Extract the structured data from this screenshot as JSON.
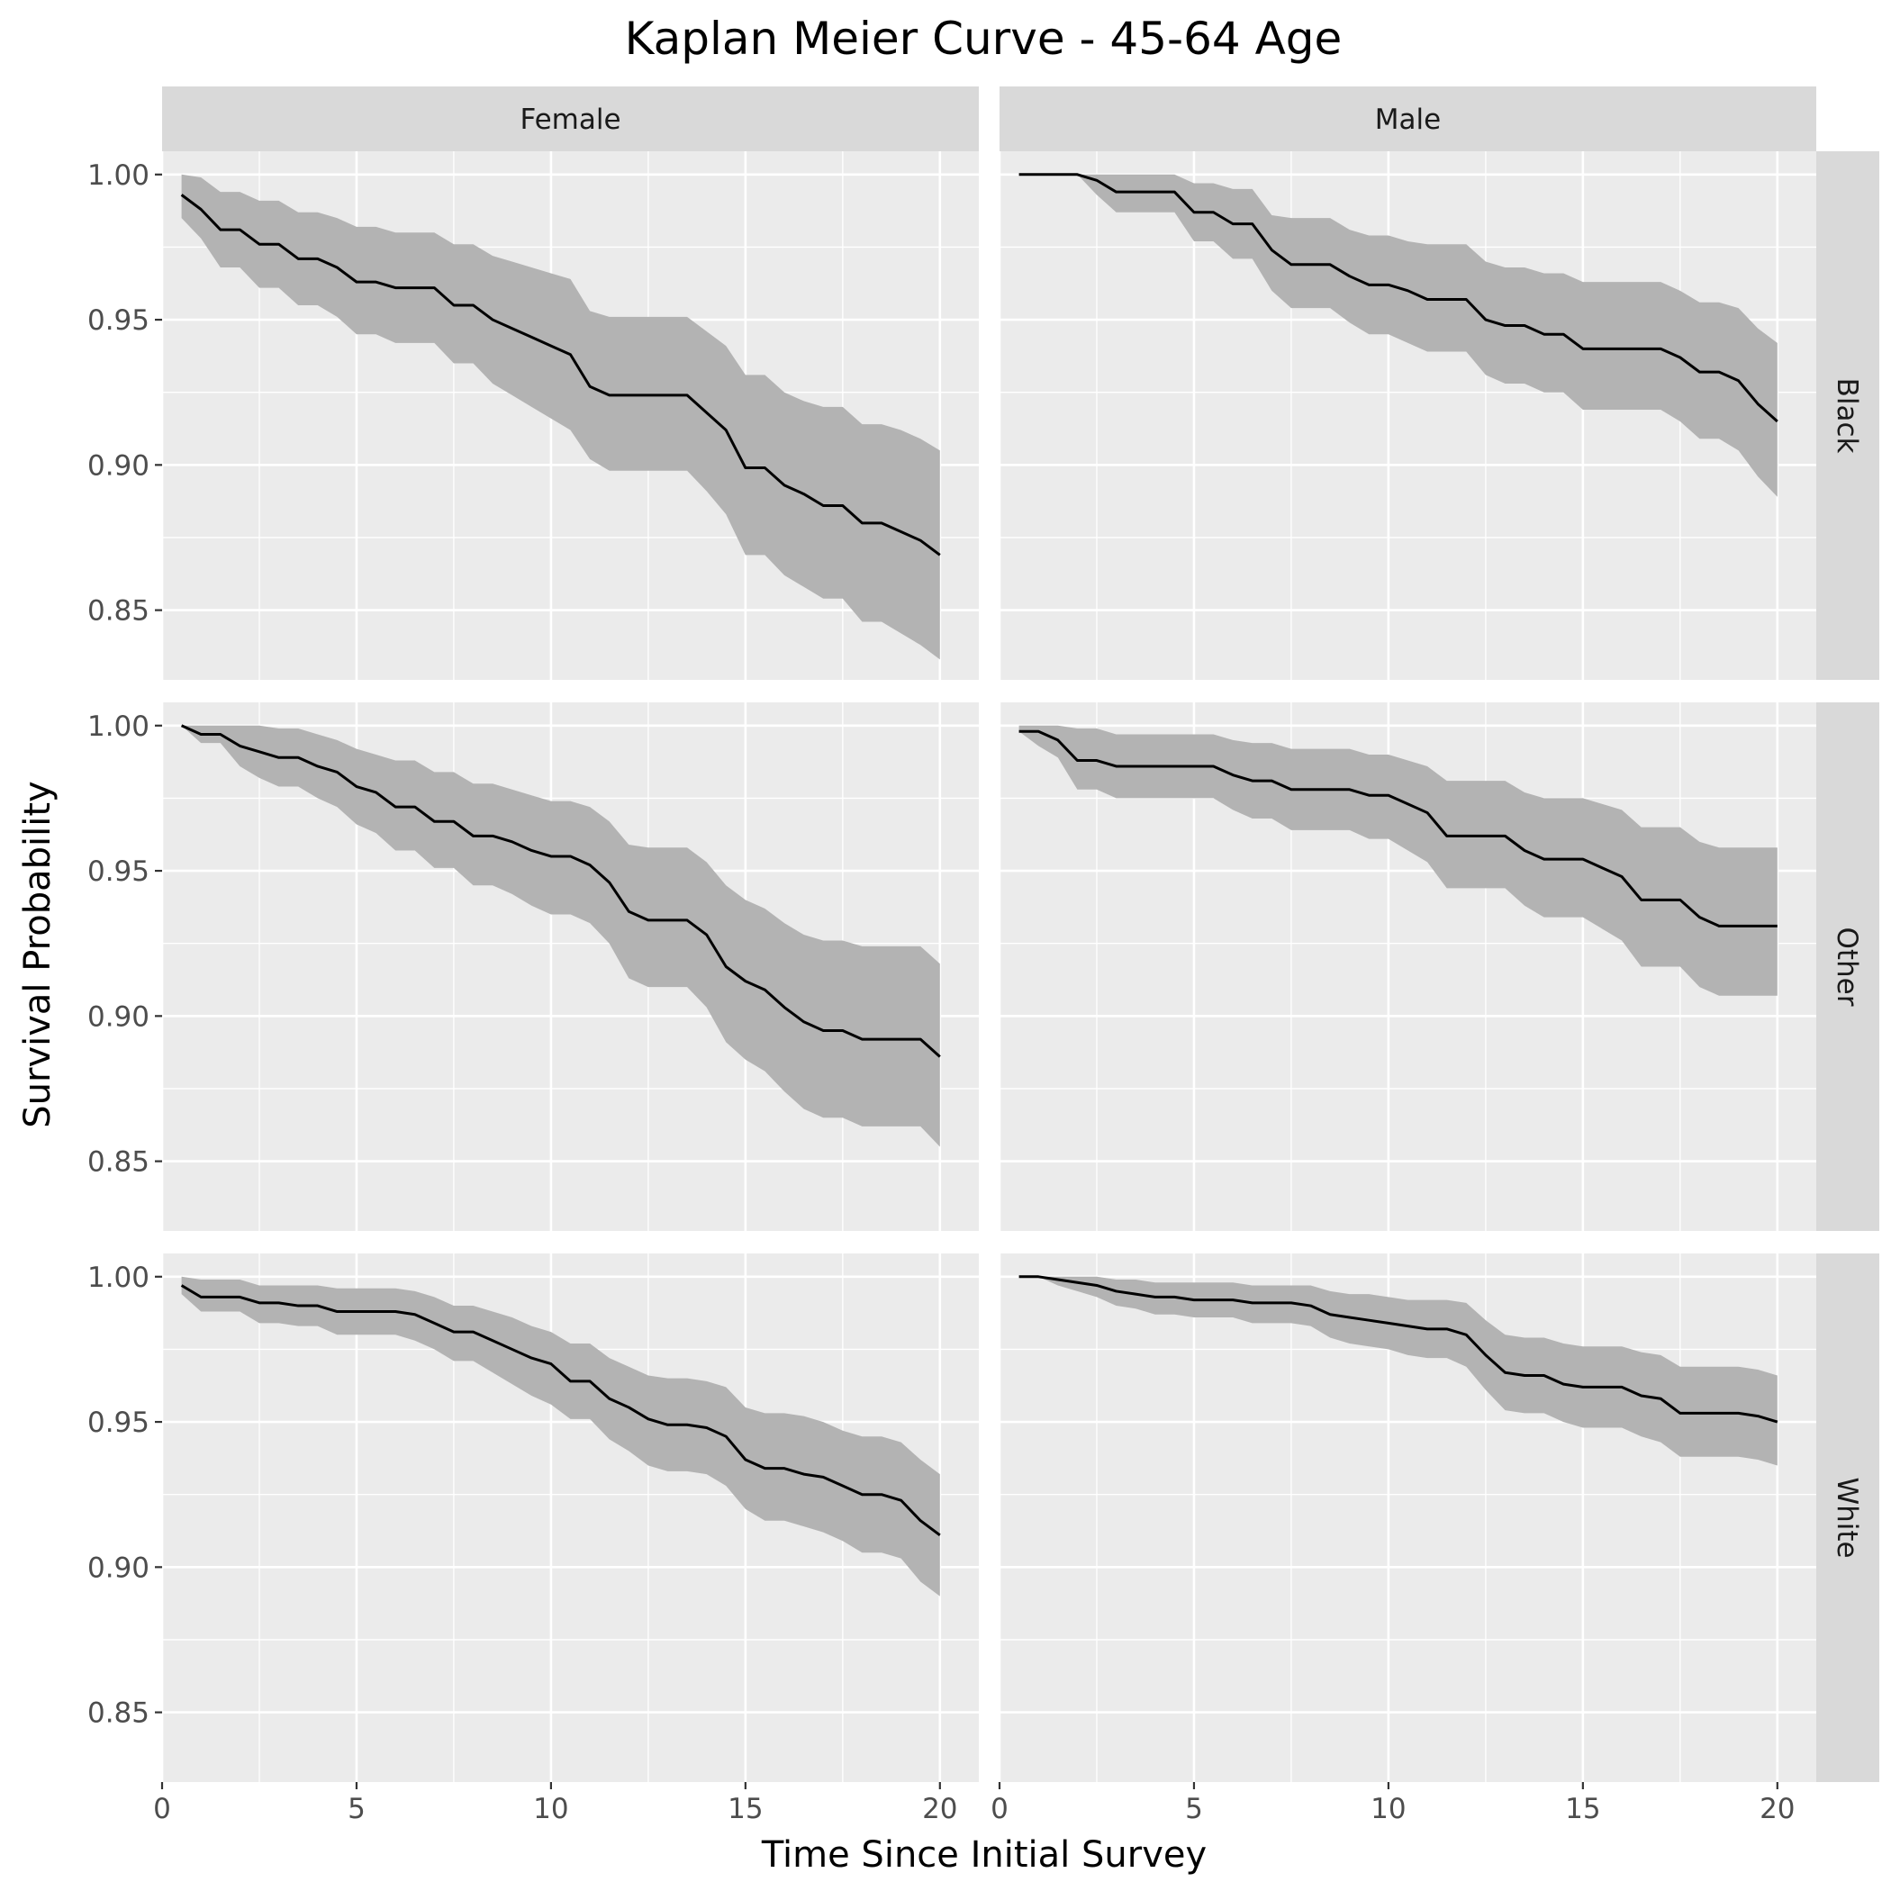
{
  "chart_data": {
    "type": "line",
    "title": "Kaplan Meier Curve - 45-64 Age",
    "xlabel": "Time Since Initial Survey",
    "ylabel": "Survival Probability",
    "xlim": [
      0,
      21
    ],
    "ylim": [
      0.826,
      1.008
    ],
    "x_ticks": [
      0,
      5,
      10,
      15,
      20
    ],
    "x_tick_labels": [
      "0",
      "5",
      "10",
      "15",
      "20"
    ],
    "y_ticks": [
      0.85,
      0.9,
      0.95,
      1.0
    ],
    "y_tick_labels": [
      "0.85",
      "0.90",
      "0.95",
      "1.00"
    ],
    "grid": true,
    "legend": "none",
    "colors": {
      "line": "#000000",
      "band": "#b3b3b3",
      "panel": "#ebebeb",
      "strip": "#d9d9d9"
    },
    "columns": [
      "Female",
      "Male"
    ],
    "rows": [
      "Black",
      "Other",
      "White"
    ],
    "panels": [
      {
        "row": "Black",
        "column": "Female",
        "x": [
          0.5,
          1,
          1.5,
          2,
          2.5,
          3,
          3.5,
          4,
          4.5,
          5,
          5.5,
          6,
          6.5,
          7,
          7.5,
          8,
          8.5,
          9,
          9.5,
          10,
          10.5,
          11,
          11.5,
          12,
          12.5,
          13,
          13.5,
          14,
          14.5,
          15,
          15.5,
          16,
          16.5,
          17,
          17.5,
          18,
          18.5,
          19,
          19.5,
          20
        ],
        "survival": [
          0.993,
          0.988,
          0.981,
          0.981,
          0.976,
          0.976,
          0.971,
          0.971,
          0.968,
          0.963,
          0.963,
          0.961,
          0.961,
          0.961,
          0.955,
          0.955,
          0.95,
          0.947,
          0.944,
          0.941,
          0.938,
          0.927,
          0.924,
          0.924,
          0.924,
          0.924,
          0.924,
          0.918,
          0.912,
          0.899,
          0.899,
          0.893,
          0.89,
          0.886,
          0.886,
          0.88,
          0.88,
          0.877,
          0.874,
          0.869
        ],
        "lower": [
          0.985,
          0.978,
          0.968,
          0.968,
          0.961,
          0.961,
          0.955,
          0.955,
          0.951,
          0.945,
          0.945,
          0.942,
          0.942,
          0.942,
          0.935,
          0.935,
          0.928,
          0.924,
          0.92,
          0.916,
          0.912,
          0.902,
          0.898,
          0.898,
          0.898,
          0.898,
          0.898,
          0.891,
          0.883,
          0.869,
          0.869,
          0.862,
          0.858,
          0.854,
          0.854,
          0.846,
          0.846,
          0.842,
          0.838,
          0.833
        ],
        "upper": [
          1.0,
          0.999,
          0.994,
          0.994,
          0.991,
          0.991,
          0.987,
          0.987,
          0.985,
          0.982,
          0.982,
          0.98,
          0.98,
          0.98,
          0.976,
          0.976,
          0.972,
          0.97,
          0.968,
          0.966,
          0.964,
          0.953,
          0.951,
          0.951,
          0.951,
          0.951,
          0.951,
          0.946,
          0.941,
          0.931,
          0.931,
          0.925,
          0.922,
          0.92,
          0.92,
          0.914,
          0.914,
          0.912,
          0.909,
          0.905
        ]
      },
      {
        "row": "Black",
        "column": "Male",
        "x": [
          0.5,
          1,
          1.5,
          2,
          2.5,
          3,
          3.5,
          4,
          4.5,
          5,
          5.5,
          6,
          6.5,
          7,
          7.5,
          8,
          8.5,
          9,
          9.5,
          10,
          10.5,
          11,
          11.5,
          12,
          12.5,
          13,
          13.5,
          14,
          14.5,
          15,
          15.5,
          16,
          16.5,
          17,
          17.5,
          18,
          18.5,
          19,
          19.5,
          20
        ],
        "survival": [
          1.0,
          1.0,
          1.0,
          1.0,
          0.998,
          0.994,
          0.994,
          0.994,
          0.994,
          0.987,
          0.987,
          0.983,
          0.983,
          0.974,
          0.969,
          0.969,
          0.969,
          0.965,
          0.962,
          0.962,
          0.96,
          0.957,
          0.957,
          0.957,
          0.95,
          0.948,
          0.948,
          0.945,
          0.945,
          0.94,
          0.94,
          0.94,
          0.94,
          0.94,
          0.937,
          0.932,
          0.932,
          0.929,
          0.921,
          0.915
        ],
        "lower": [
          1.0,
          1.0,
          1.0,
          1.0,
          0.993,
          0.987,
          0.987,
          0.987,
          0.987,
          0.977,
          0.977,
          0.971,
          0.971,
          0.96,
          0.954,
          0.954,
          0.954,
          0.949,
          0.945,
          0.945,
          0.942,
          0.939,
          0.939,
          0.939,
          0.931,
          0.928,
          0.928,
          0.925,
          0.925,
          0.919,
          0.919,
          0.919,
          0.919,
          0.919,
          0.915,
          0.909,
          0.909,
          0.905,
          0.896,
          0.889
        ],
        "upper": [
          1.0,
          1.0,
          1.0,
          1.0,
          1.0,
          1.0,
          1.0,
          1.0,
          1.0,
          0.997,
          0.997,
          0.995,
          0.995,
          0.986,
          0.985,
          0.985,
          0.985,
          0.981,
          0.979,
          0.979,
          0.977,
          0.976,
          0.976,
          0.976,
          0.97,
          0.968,
          0.968,
          0.966,
          0.966,
          0.963,
          0.963,
          0.963,
          0.963,
          0.963,
          0.96,
          0.956,
          0.956,
          0.954,
          0.947,
          0.942
        ]
      },
      {
        "row": "Other",
        "column": "Female",
        "x": [
          0.5,
          1,
          1.5,
          2,
          2.5,
          3,
          3.5,
          4,
          4.5,
          5,
          5.5,
          6,
          6.5,
          7,
          7.5,
          8,
          8.5,
          9,
          9.5,
          10,
          10.5,
          11,
          11.5,
          12,
          12.5,
          13,
          13.5,
          14,
          14.5,
          15,
          15.5,
          16,
          16.5,
          17,
          17.5,
          18,
          18.5,
          19,
          19.5,
          20
        ],
        "survival": [
          1.0,
          0.997,
          0.997,
          0.993,
          0.991,
          0.989,
          0.989,
          0.986,
          0.984,
          0.979,
          0.977,
          0.972,
          0.972,
          0.967,
          0.967,
          0.962,
          0.962,
          0.96,
          0.957,
          0.955,
          0.955,
          0.952,
          0.946,
          0.936,
          0.933,
          0.933,
          0.933,
          0.928,
          0.917,
          0.912,
          0.909,
          0.903,
          0.898,
          0.895,
          0.895,
          0.892,
          0.892,
          0.892,
          0.892,
          0.886
        ],
        "lower": [
          1.0,
          0.994,
          0.994,
          0.986,
          0.982,
          0.979,
          0.979,
          0.975,
          0.972,
          0.966,
          0.963,
          0.957,
          0.957,
          0.951,
          0.951,
          0.945,
          0.945,
          0.942,
          0.938,
          0.935,
          0.935,
          0.932,
          0.925,
          0.913,
          0.91,
          0.91,
          0.91,
          0.903,
          0.891,
          0.885,
          0.881,
          0.874,
          0.868,
          0.865,
          0.865,
          0.862,
          0.862,
          0.862,
          0.862,
          0.855
        ],
        "upper": [
          1.0,
          1.0,
          1.0,
          1.0,
          1.0,
          0.999,
          0.999,
          0.997,
          0.995,
          0.992,
          0.99,
          0.988,
          0.988,
          0.984,
          0.984,
          0.98,
          0.98,
          0.978,
          0.976,
          0.974,
          0.974,
          0.972,
          0.967,
          0.959,
          0.958,
          0.958,
          0.958,
          0.953,
          0.945,
          0.94,
          0.937,
          0.932,
          0.928,
          0.926,
          0.926,
          0.924,
          0.924,
          0.924,
          0.924,
          0.918
        ]
      },
      {
        "row": "Other",
        "column": "Male",
        "x": [
          0.5,
          1,
          1.5,
          2,
          2.5,
          3,
          3.5,
          4,
          4.5,
          5,
          5.5,
          6,
          6.5,
          7,
          7.5,
          8,
          8.5,
          9,
          9.5,
          10,
          10.5,
          11,
          11.5,
          12,
          12.5,
          13,
          13.5,
          14,
          14.5,
          15,
          15.5,
          16,
          16.5,
          17,
          17.5,
          18,
          18.5,
          19,
          19.5,
          20
        ],
        "survival": [
          0.998,
          0.998,
          0.995,
          0.988,
          0.988,
          0.986,
          0.986,
          0.986,
          0.986,
          0.986,
          0.986,
          0.983,
          0.981,
          0.981,
          0.978,
          0.978,
          0.978,
          0.978,
          0.976,
          0.976,
          0.973,
          0.97,
          0.962,
          0.962,
          0.962,
          0.962,
          0.957,
          0.954,
          0.954,
          0.954,
          0.951,
          0.948,
          0.94,
          0.94,
          0.94,
          0.934,
          0.931,
          0.931,
          0.931,
          0.931
        ],
        "lower": [
          0.998,
          0.993,
          0.989,
          0.978,
          0.978,
          0.975,
          0.975,
          0.975,
          0.975,
          0.975,
          0.975,
          0.971,
          0.968,
          0.968,
          0.964,
          0.964,
          0.964,
          0.964,
          0.961,
          0.961,
          0.957,
          0.953,
          0.944,
          0.944,
          0.944,
          0.944,
          0.938,
          0.934,
          0.934,
          0.934,
          0.93,
          0.926,
          0.917,
          0.917,
          0.917,
          0.91,
          0.907,
          0.907,
          0.907,
          0.907
        ],
        "upper": [
          1.0,
          1.0,
          1.0,
          0.999,
          0.999,
          0.997,
          0.997,
          0.997,
          0.997,
          0.997,
          0.997,
          0.995,
          0.994,
          0.994,
          0.992,
          0.992,
          0.992,
          0.992,
          0.99,
          0.99,
          0.988,
          0.986,
          0.981,
          0.981,
          0.981,
          0.981,
          0.977,
          0.975,
          0.975,
          0.975,
          0.973,
          0.971,
          0.965,
          0.965,
          0.965,
          0.96,
          0.958,
          0.958,
          0.958,
          0.958
        ]
      },
      {
        "row": "White",
        "column": "Female",
        "x": [
          0.5,
          1,
          1.5,
          2,
          2.5,
          3,
          3.5,
          4,
          4.5,
          5,
          5.5,
          6,
          6.5,
          7,
          7.5,
          8,
          8.5,
          9,
          9.5,
          10,
          10.5,
          11,
          11.5,
          12,
          12.5,
          13,
          13.5,
          14,
          14.5,
          15,
          15.5,
          16,
          16.5,
          17,
          17.5,
          18,
          18.5,
          19,
          19.5,
          20
        ],
        "survival": [
          0.997,
          0.993,
          0.993,
          0.993,
          0.991,
          0.991,
          0.99,
          0.99,
          0.988,
          0.988,
          0.988,
          0.988,
          0.987,
          0.984,
          0.981,
          0.981,
          0.978,
          0.975,
          0.972,
          0.97,
          0.964,
          0.964,
          0.958,
          0.955,
          0.951,
          0.949,
          0.949,
          0.948,
          0.945,
          0.937,
          0.934,
          0.934,
          0.932,
          0.931,
          0.928,
          0.925,
          0.925,
          0.923,
          0.916,
          0.911
        ],
        "lower": [
          0.994,
          0.988,
          0.988,
          0.988,
          0.984,
          0.984,
          0.983,
          0.983,
          0.98,
          0.98,
          0.98,
          0.98,
          0.978,
          0.975,
          0.971,
          0.971,
          0.967,
          0.963,
          0.959,
          0.956,
          0.951,
          0.951,
          0.944,
          0.94,
          0.935,
          0.933,
          0.933,
          0.932,
          0.928,
          0.92,
          0.916,
          0.916,
          0.914,
          0.912,
          0.909,
          0.905,
          0.905,
          0.903,
          0.895,
          0.89
        ],
        "upper": [
          1.0,
          0.999,
          0.999,
          0.999,
          0.997,
          0.997,
          0.997,
          0.997,
          0.996,
          0.996,
          0.996,
          0.996,
          0.995,
          0.993,
          0.99,
          0.99,
          0.988,
          0.986,
          0.983,
          0.981,
          0.977,
          0.977,
          0.972,
          0.969,
          0.966,
          0.965,
          0.965,
          0.964,
          0.962,
          0.955,
          0.953,
          0.953,
          0.952,
          0.95,
          0.947,
          0.945,
          0.945,
          0.943,
          0.937,
          0.932
        ]
      },
      {
        "row": "White",
        "column": "Male",
        "x": [
          0.5,
          1,
          1.5,
          2,
          2.5,
          3,
          3.5,
          4,
          4.5,
          5,
          5.5,
          6,
          6.5,
          7,
          7.5,
          8,
          8.5,
          9,
          9.5,
          10,
          10.5,
          11,
          11.5,
          12,
          12.5,
          13,
          13.5,
          14,
          14.5,
          15,
          15.5,
          16,
          16.5,
          17,
          17.5,
          18,
          18.5,
          19,
          19.5,
          20
        ],
        "survival": [
          1.0,
          1.0,
          0.999,
          0.998,
          0.997,
          0.995,
          0.994,
          0.993,
          0.993,
          0.992,
          0.992,
          0.992,
          0.991,
          0.991,
          0.991,
          0.99,
          0.987,
          0.986,
          0.985,
          0.984,
          0.983,
          0.982,
          0.982,
          0.98,
          0.973,
          0.967,
          0.966,
          0.966,
          0.963,
          0.962,
          0.962,
          0.962,
          0.959,
          0.958,
          0.953,
          0.953,
          0.953,
          0.953,
          0.952,
          0.95
        ],
        "lower": [
          1.0,
          1.0,
          0.997,
          0.995,
          0.993,
          0.99,
          0.989,
          0.987,
          0.987,
          0.986,
          0.986,
          0.986,
          0.984,
          0.984,
          0.984,
          0.983,
          0.979,
          0.977,
          0.976,
          0.975,
          0.973,
          0.972,
          0.972,
          0.969,
          0.961,
          0.954,
          0.953,
          0.953,
          0.95,
          0.948,
          0.948,
          0.948,
          0.945,
          0.943,
          0.938,
          0.938,
          0.938,
          0.938,
          0.937,
          0.935
        ],
        "upper": [
          1.0,
          1.0,
          1.0,
          1.0,
          1.0,
          0.999,
          0.999,
          0.998,
          0.998,
          0.998,
          0.998,
          0.998,
          0.997,
          0.997,
          0.997,
          0.997,
          0.995,
          0.994,
          0.994,
          0.993,
          0.992,
          0.992,
          0.992,
          0.991,
          0.985,
          0.98,
          0.979,
          0.979,
          0.977,
          0.976,
          0.976,
          0.976,
          0.974,
          0.973,
          0.969,
          0.969,
          0.969,
          0.969,
          0.968,
          0.966
        ]
      }
    ]
  }
}
